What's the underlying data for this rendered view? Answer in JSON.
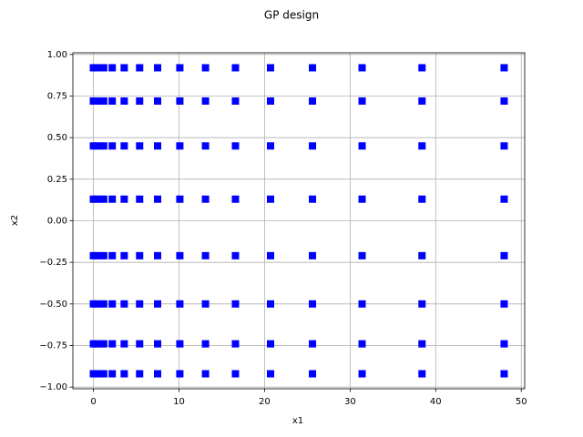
{
  "chart_data": {
    "type": "scatter",
    "title": "GP design",
    "x_label": "x1",
    "y_label": "x2",
    "x": [
      0,
      0.5,
      1.2,
      2.2,
      3.6,
      5.4,
      7.5,
      10.1,
      13.1,
      16.6,
      20.7,
      25.6,
      31.4,
      38.4,
      48.0
    ],
    "series": [
      {
        "color": "#0000ff",
        "values": [
          0.92,
          0.92,
          0.92,
          0.92,
          0.92,
          0.92,
          0.92,
          0.92,
          0.92,
          0.92,
          0.92,
          0.92,
          0.92,
          0.92,
          0.92
        ]
      },
      {
        "color": "#0000ff",
        "values": [
          0.72,
          0.72,
          0.72,
          0.72,
          0.72,
          0.72,
          0.72,
          0.72,
          0.72,
          0.72,
          0.72,
          0.72,
          0.72,
          0.72,
          0.72
        ]
      },
      {
        "color": "#0000ff",
        "values": [
          0.45,
          0.45,
          0.45,
          0.45,
          0.45,
          0.45,
          0.45,
          0.45,
          0.45,
          0.45,
          0.45,
          0.45,
          0.45,
          0.45,
          0.45
        ]
      },
      {
        "color": "#0000ff",
        "values": [
          0.13,
          0.13,
          0.13,
          0.13,
          0.13,
          0.13,
          0.13,
          0.13,
          0.13,
          0.13,
          0.13,
          0.13,
          0.13,
          0.13,
          0.13
        ]
      },
      {
        "color": "#0000ff",
        "values": [
          -0.21,
          -0.21,
          -0.21,
          -0.21,
          -0.21,
          -0.21,
          -0.21,
          -0.21,
          -0.21,
          -0.21,
          -0.21,
          -0.21,
          -0.21,
          -0.21,
          -0.21
        ]
      },
      {
        "color": "#0000ff",
        "values": [
          -0.5,
          -0.5,
          -0.5,
          -0.5,
          -0.5,
          -0.5,
          -0.5,
          -0.5,
          -0.5,
          -0.5,
          -0.5,
          -0.5,
          -0.5,
          -0.5,
          -0.5
        ]
      },
      {
        "color": "#0000ff",
        "values": [
          -0.74,
          -0.74,
          -0.74,
          -0.74,
          -0.74,
          -0.74,
          -0.74,
          -0.74,
          -0.74,
          -0.74,
          -0.74,
          -0.74,
          -0.74,
          -0.74,
          -0.74
        ]
      },
      {
        "color": "#0000ff",
        "values": [
          -0.92,
          -0.92,
          -0.92,
          -0.92,
          -0.92,
          -0.92,
          -0.92,
          -0.92,
          -0.92,
          -0.92,
          -0.92,
          -0.92,
          -0.92,
          -0.92,
          -0.92
        ]
      }
    ],
    "xlim": [
      -2.4,
      50.4
    ],
    "ylim": [
      -1.01,
      1.01
    ],
    "xticks": [
      0,
      10,
      20,
      30,
      40,
      50
    ],
    "yticks": [
      {
        "value": -1,
        "label": "−1.00"
      },
      {
        "value": -0.75,
        "label": "−0.75"
      },
      {
        "value": -0.5,
        "label": "−0.50"
      },
      {
        "value": -0.25,
        "label": "−0.25"
      },
      {
        "value": 0,
        "label": "0.00"
      },
      {
        "value": 0.25,
        "label": "0.25"
      },
      {
        "value": 0.5,
        "label": "0.50"
      },
      {
        "value": 0.75,
        "label": "0.75"
      },
      {
        "value": 1,
        "label": "1.00"
      }
    ],
    "grid": true
  }
}
